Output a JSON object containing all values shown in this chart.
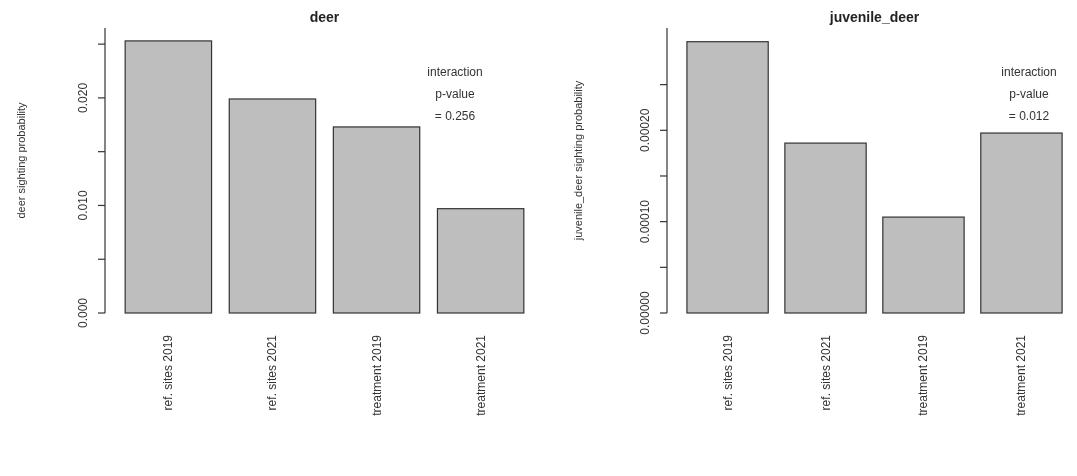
{
  "chart_data": [
    {
      "type": "bar",
      "title": "deer",
      "ylabel": "deer sighting probability",
      "categories": [
        "ref. sites 2019",
        "ref. sites 2021",
        "treatment 2019",
        "treatment 2021"
      ],
      "values": [
        0.0253,
        0.0199,
        0.0173,
        0.0097
      ],
      "color": "#bebebe",
      "ylim": [
        0,
        0.0265
      ],
      "yticks": [
        {
          "value": 0,
          "label": "0.000"
        },
        {
          "value": 0.005,
          "label": null
        },
        {
          "value": 0.01,
          "label": "0.010"
        },
        {
          "value": 0.015,
          "label": null
        },
        {
          "value": 0.02,
          "label": "0.020"
        },
        {
          "value": 0.025,
          "label": null
        }
      ],
      "annotations": [
        "interaction\np-value\n= 0.256"
      ],
      "grid": false
    },
    {
      "type": "bar",
      "title": "juvenile_deer",
      "ylabel": "juvenile_deer sighting probability",
      "categories": [
        "ref. sites 2019",
        "ref. sites 2021",
        "treatment 2019",
        "treatment 2021"
      ],
      "values": [
        0.000297,
        0.000186,
        0.000105,
        0.000197
      ],
      "color": "#bebebe",
      "ylim": [
        0,
        0.000312
      ],
      "yticks": [
        {
          "value": 0,
          "label": "0.00000"
        },
        {
          "value": 5e-05,
          "label": null
        },
        {
          "value": 0.0001,
          "label": "0.00010"
        },
        {
          "value": 0.00015,
          "label": null
        },
        {
          "value": 0.0002,
          "label": "0.00020"
        },
        {
          "value": 0.00025,
          "label": null
        }
      ],
      "annotations": [
        "interaction\np-value\n= 0.012"
      ],
      "grid": false
    }
  ]
}
